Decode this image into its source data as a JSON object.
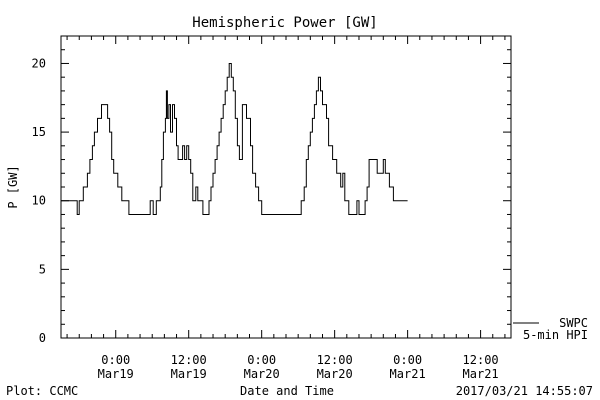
{
  "chart_data": {
    "type": "line",
    "title": "Hemispheric Power [GW]",
    "ylabel": "P [GW]",
    "xlabel": "Date and Time",
    "ylim": [
      0,
      22
    ],
    "yticks": [
      0,
      5,
      10,
      15,
      20
    ],
    "xlim": [
      "2017-03-18 15:00",
      "2017-03-21 17:00"
    ],
    "xticks": [
      {
        "t": "2017-03-19 00:00",
        "line1": "0:00",
        "line2": "Mar19"
      },
      {
        "t": "2017-03-19 12:00",
        "line1": "12:00",
        "line2": "Mar19"
      },
      {
        "t": "2017-03-20 00:00",
        "line1": "0:00",
        "line2": "Mar20"
      },
      {
        "t": "2017-03-20 12:00",
        "line1": "12:00",
        "line2": "Mar20"
      },
      {
        "t": "2017-03-21 00:00",
        "line1": "0:00",
        "line2": "Mar21"
      },
      {
        "t": "2017-03-21 12:00",
        "line1": "12:00",
        "line2": "Mar21"
      }
    ],
    "grid": false,
    "legend_position": "right-bottom",
    "series": [
      {
        "name": "SWPC",
        "subtitle": "5-min HPI",
        "color": "#000000",
        "x": [
          "2017-03-18 15:00",
          "2017-03-18 17:00",
          "2017-03-18 17:40",
          "2017-03-18 18:00",
          "2017-03-18 18:40",
          "2017-03-18 19:20",
          "2017-03-18 19:45",
          "2017-03-18 20:10",
          "2017-03-18 20:30",
          "2017-03-18 21:00",
          "2017-03-18 21:20",
          "2017-03-18 21:40",
          "2017-03-18 22:00",
          "2017-03-18 22:40",
          "2017-03-18 23:00",
          "2017-03-18 23:20",
          "2017-03-18 23:40",
          "2017-03-19 00:20",
          "2017-03-19 01:00",
          "2017-03-19 01:40",
          "2017-03-19 02:10",
          "2017-03-19 03:00",
          "2017-03-19 05:00",
          "2017-03-19 05:40",
          "2017-03-19 06:10",
          "2017-03-19 06:40",
          "2017-03-19 07:00",
          "2017-03-19 07:20",
          "2017-03-19 07:35",
          "2017-03-19 07:50",
          "2017-03-19 08:10",
          "2017-03-19 08:20",
          "2017-03-19 08:30",
          "2017-03-19 08:45",
          "2017-03-19 09:00",
          "2017-03-19 09:20",
          "2017-03-19 09:40",
          "2017-03-19 10:00",
          "2017-03-19 10:15",
          "2017-03-19 10:40",
          "2017-03-19 11:00",
          "2017-03-19 11:20",
          "2017-03-19 11:40",
          "2017-03-19 12:00",
          "2017-03-19 12:20",
          "2017-03-19 12:40",
          "2017-03-19 13:10",
          "2017-03-19 13:30",
          "2017-03-19 14:20",
          "2017-03-19 14:40",
          "2017-03-19 15:20",
          "2017-03-19 15:40",
          "2017-03-19 16:00",
          "2017-03-19 16:20",
          "2017-03-19 16:40",
          "2017-03-19 17:00",
          "2017-03-19 17:20",
          "2017-03-19 17:40",
          "2017-03-19 18:00",
          "2017-03-19 18:20",
          "2017-03-19 18:40",
          "2017-03-19 19:00",
          "2017-03-19 19:20",
          "2017-03-19 19:40",
          "2017-03-19 20:00",
          "2017-03-19 20:20",
          "2017-03-19 20:50",
          "2017-03-19 21:10",
          "2017-03-19 21:30",
          "2017-03-19 22:10",
          "2017-03-19 22:30",
          "2017-03-19 23:00",
          "2017-03-19 23:30",
          "2017-03-20 00:00",
          "2017-03-20 00:30",
          "2017-03-20 01:00",
          "2017-03-20 01:20",
          "2017-03-20 01:40",
          "2017-03-20 02:00",
          "2017-03-20 02:30",
          "2017-03-20 06:30",
          "2017-03-20 07:00",
          "2017-03-20 07:20",
          "2017-03-20 07:40",
          "2017-03-20 08:00",
          "2017-03-20 08:20",
          "2017-03-20 08:40",
          "2017-03-20 09:00",
          "2017-03-20 09:20",
          "2017-03-20 09:40",
          "2017-03-20 10:00",
          "2017-03-20 10:40",
          "2017-03-20 11:00",
          "2017-03-20 11:20",
          "2017-03-20 11:40",
          "2017-03-20 12:00",
          "2017-03-20 12:20",
          "2017-03-20 13:00",
          "2017-03-20 13:20",
          "2017-03-20 13:40",
          "2017-03-20 14:00",
          "2017-03-20 14:20",
          "2017-03-20 14:40",
          "2017-03-20 15:40",
          "2017-03-20 16:00",
          "2017-03-20 16:30",
          "2017-03-20 17:00",
          "2017-03-20 17:20",
          "2017-03-20 17:40",
          "2017-03-20 19:00",
          "2017-03-20 19:20",
          "2017-03-20 19:40",
          "2017-03-20 20:00",
          "2017-03-20 20:20",
          "2017-03-20 21:00",
          "2017-03-20 21:40",
          "2017-03-21 00:00"
        ],
        "y": [
          10,
          10,
          9,
          10,
          11,
          12,
          13,
          14,
          15,
          16,
          16,
          17,
          17,
          16,
          15,
          13,
          12,
          11,
          10,
          10,
          9,
          9,
          9,
          10,
          9,
          10,
          10,
          11,
          13,
          15,
          16,
          18,
          16,
          17,
          15,
          17,
          16,
          14,
          13,
          13,
          14,
          13,
          14,
          13,
          12,
          10,
          11,
          10,
          9,
          9,
          10,
          11,
          12,
          13,
          14,
          15,
          16,
          17,
          18,
          19,
          20,
          19,
          18,
          16,
          14,
          13,
          17,
          17,
          16,
          14,
          12,
          11,
          10,
          9,
          9,
          9,
          9,
          9,
          9,
          9,
          10,
          11,
          13,
          14,
          15,
          16,
          17,
          18,
          19,
          18,
          17,
          16,
          14,
          14,
          13,
          13,
          12,
          11,
          12,
          10,
          10,
          9,
          9,
          10,
          9,
          9,
          10,
          11,
          13,
          12,
          12,
          12,
          13,
          12,
          11,
          10,
          10
        ]
      }
    ]
  },
  "footer": {
    "plot_credit": "Plot: CCMC",
    "timestamp": "2017/03/21 14:55:07"
  }
}
